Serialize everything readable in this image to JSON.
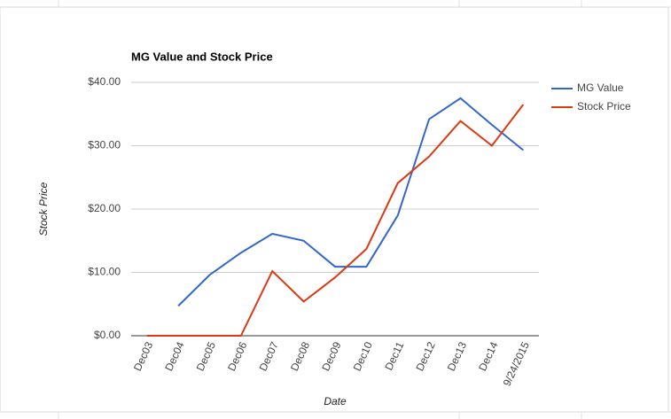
{
  "chart_data": {
    "type": "line",
    "title": "MG Value and Stock Price",
    "x_label": "Date",
    "y_label": "Stock Price",
    "categories": [
      "Dec03",
      "Dec04",
      "Dec05",
      "Dec06",
      "Dec07",
      "Dec08",
      "Dec09",
      "Dec10",
      "Dec11",
      "Dec12",
      "Dec13",
      "Dec14",
      "9/24/2015"
    ],
    "series": [
      {
        "name": "MG Value",
        "color": "#3366cc",
        "values": [
          null,
          4.7,
          9.6,
          13.1,
          16.1,
          15.0,
          10.9,
          10.9,
          19.0,
          34.2,
          37.5,
          33.3,
          29.3
        ]
      },
      {
        "name": "Stock Price",
        "color": "#dc3912",
        "values": [
          0,
          0,
          0,
          0,
          10.2,
          5.4,
          9.2,
          13.7,
          24.1,
          28.3,
          33.9,
          30.0,
          36.5
        ]
      }
    ],
    "ylim": [
      0,
      40
    ],
    "yticks": [
      {
        "value": 0,
        "label": "$0.00"
      },
      {
        "value": 10,
        "label": "$10.00"
      },
      {
        "value": 20,
        "label": "$20.00"
      },
      {
        "value": 30,
        "label": "$30.00"
      },
      {
        "value": 40,
        "label": "$40.00"
      }
    ],
    "grid": true,
    "legend": "right"
  }
}
